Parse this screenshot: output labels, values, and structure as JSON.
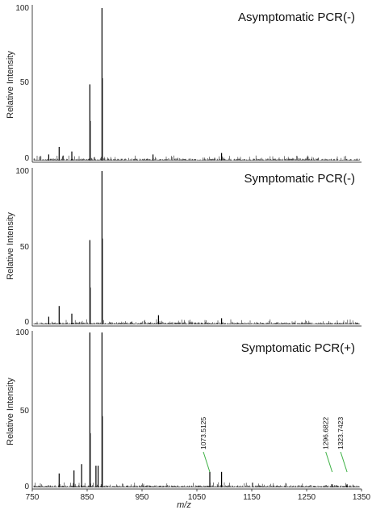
{
  "chart_data": {
    "type": "line",
    "xlabel": "m/z",
    "ylabel": "Relative Intensity",
    "xlim": [
      750,
      1350
    ],
    "ylim": [
      0,
      100
    ],
    "x_ticks": [
      750,
      850,
      950,
      1050,
      1150,
      1250,
      1350
    ],
    "y_ticks": [
      0,
      50,
      100
    ],
    "panels": [
      {
        "title": "Asymptomatic PCR(-)",
        "peaks": [
          {
            "x": 855,
            "y": 50
          },
          {
            "x": 855.6,
            "y": 26
          },
          {
            "x": 877,
            "y": 100
          },
          {
            "x": 877.6,
            "y": 54
          },
          {
            "x": 799,
            "y": 9
          },
          {
            "x": 822,
            "y": 6
          },
          {
            "x": 1095,
            "y": 5
          },
          {
            "x": 780,
            "y": 4
          },
          {
            "x": 970,
            "y": 4
          }
        ],
        "annotations": []
      },
      {
        "title": "Symptomatic PCR(-)",
        "peaks": [
          {
            "x": 855,
            "y": 55
          },
          {
            "x": 855.6,
            "y": 24
          },
          {
            "x": 877,
            "y": 100
          },
          {
            "x": 877.6,
            "y": 56
          },
          {
            "x": 799,
            "y": 12
          },
          {
            "x": 822,
            "y": 7
          },
          {
            "x": 980,
            "y": 6
          },
          {
            "x": 1095,
            "y": 4
          },
          {
            "x": 780,
            "y": 5
          }
        ],
        "annotations": []
      },
      {
        "title": "Symptomatic PCR(+)",
        "peaks": [
          {
            "x": 855,
            "y": 100
          },
          {
            "x": 855.6,
            "y": 35
          },
          {
            "x": 877,
            "y": 100
          },
          {
            "x": 877.6,
            "y": 46
          },
          {
            "x": 840,
            "y": 15
          },
          {
            "x": 866,
            "y": 14
          },
          {
            "x": 870,
            "y": 14
          },
          {
            "x": 826,
            "y": 11
          },
          {
            "x": 799,
            "y": 9
          },
          {
            "x": 1073.5125,
            "y": 10
          },
          {
            "x": 1095,
            "y": 10
          },
          {
            "x": 1296.6822,
            "y": 2
          },
          {
            "x": 1323.7423,
            "y": 2
          }
        ],
        "annotations": [
          {
            "x": 1073.5125,
            "label": "1073.5125"
          },
          {
            "x": 1296.6822,
            "label": "1296.6822"
          },
          {
            "x": 1323.7423,
            "label": "1323.7423"
          }
        ]
      }
    ]
  }
}
